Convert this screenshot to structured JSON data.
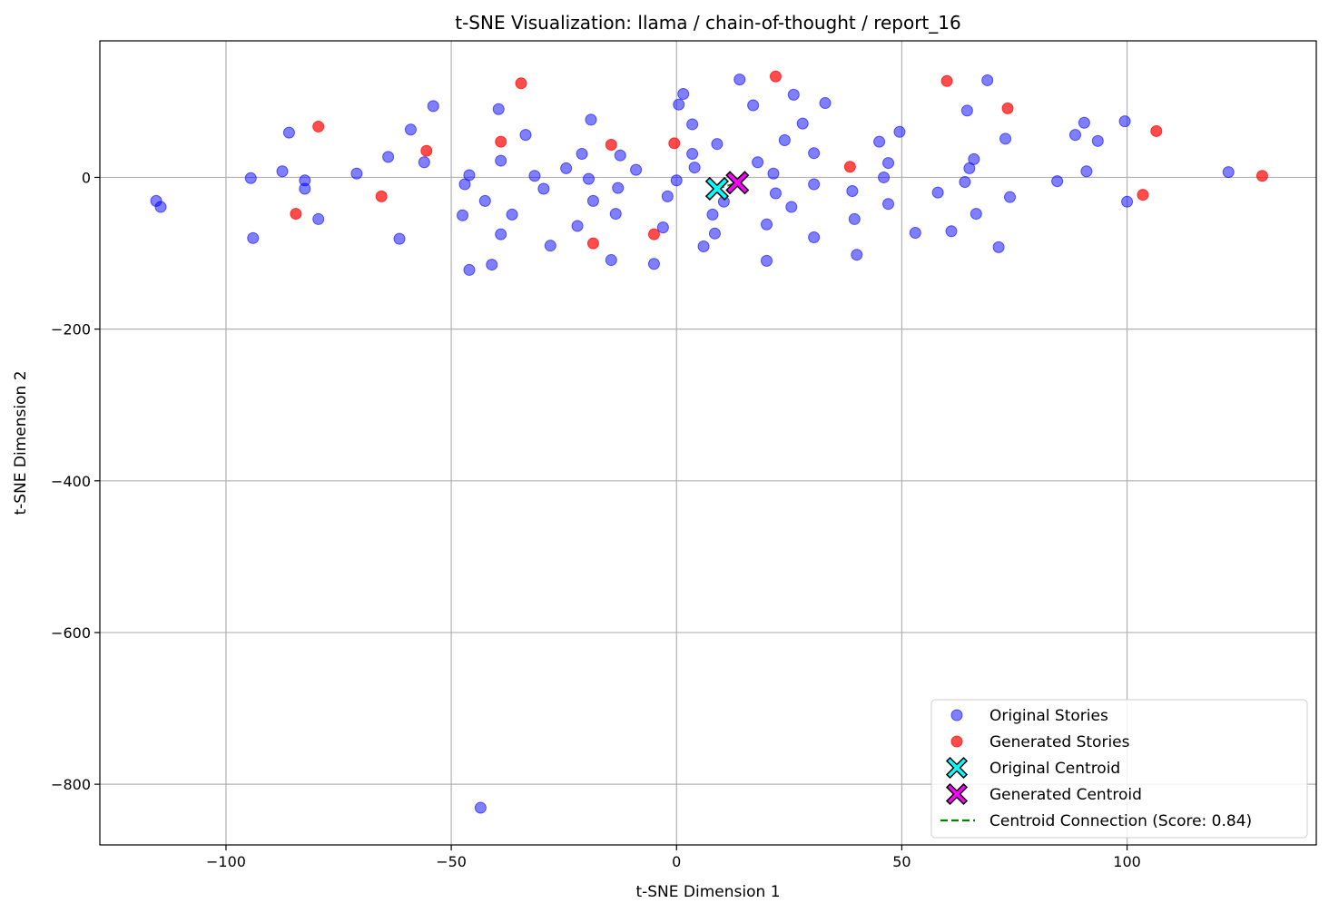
{
  "chart_data": {
    "type": "scatter",
    "title": "t-SNE Visualization: llama / chain-of-thought / report_16",
    "xlabel": "t-SNE Dimension 1",
    "ylabel": "t-SNE Dimension 2",
    "xlim": [
      -128,
      142
    ],
    "ylim": [
      -880,
      180
    ],
    "xticks": [
      -100,
      -50,
      0,
      50,
      100
    ],
    "yticks": [
      -800,
      -600,
      -400,
      -200,
      0
    ],
    "xtick_labels": [
      "−100",
      "−50",
      "0",
      "50",
      "100"
    ],
    "ytick_labels": [
      "−800",
      "−600",
      "−400",
      "−200",
      "0"
    ],
    "grid": true,
    "legend_position": "bottom-right",
    "legend_entries": {
      "original": "Original Stories",
      "generated": "Generated Stories",
      "original_centroid": "Original Centroid",
      "generated_centroid": "Generated Centroid",
      "connection": "Centroid Connection (Score: 0.84)"
    },
    "series": [
      {
        "name": "Original Stories",
        "color": "#0000ff",
        "points": [
          [
            -115.5,
            -31
          ],
          [
            -114.5,
            -39
          ],
          [
            -94.5,
            -1
          ],
          [
            -94,
            -80
          ],
          [
            -87.5,
            8
          ],
          [
            -86,
            59
          ],
          [
            -82.5,
            -4
          ],
          [
            -82.5,
            -15
          ],
          [
            -79.5,
            -55
          ],
          [
            -71,
            5
          ],
          [
            -64,
            27
          ],
          [
            -61.5,
            -81
          ],
          [
            -59,
            63
          ],
          [
            -56,
            20
          ],
          [
            -54,
            94
          ],
          [
            -47.5,
            -50
          ],
          [
            -47,
            -9
          ],
          [
            -46,
            3
          ],
          [
            -46,
            -122
          ],
          [
            -42.5,
            -31
          ],
          [
            -41,
            -115
          ],
          [
            -39.5,
            90
          ],
          [
            -39,
            22
          ],
          [
            -39,
            -75
          ],
          [
            -36.5,
            -49
          ],
          [
            -33.5,
            56
          ],
          [
            -31.5,
            2
          ],
          [
            -29.5,
            -15
          ],
          [
            -28,
            -90
          ],
          [
            -24.5,
            12
          ],
          [
            -22,
            -64
          ],
          [
            -21,
            31
          ],
          [
            -19.5,
            -2
          ],
          [
            -19,
            76
          ],
          [
            -18.5,
            -31
          ],
          [
            -14.5,
            -109
          ],
          [
            -13.5,
            -48
          ],
          [
            -13,
            -14
          ],
          [
            -12.5,
            29
          ],
          [
            -9,
            10
          ],
          [
            -5,
            -114
          ],
          [
            -3,
            -66
          ],
          [
            -2,
            -25
          ],
          [
            0,
            -4
          ],
          [
            0.5,
            96
          ],
          [
            1.5,
            110
          ],
          [
            3.5,
            70
          ],
          [
            3.5,
            31
          ],
          [
            4,
            13
          ],
          [
            6,
            -91
          ],
          [
            8,
            -49
          ],
          [
            8.5,
            -74
          ],
          [
            9,
            44
          ],
          [
            10.5,
            -32
          ],
          [
            14,
            129
          ],
          [
            17,
            95
          ],
          [
            18,
            20
          ],
          [
            20,
            -62
          ],
          [
            20,
            -110
          ],
          [
            21.5,
            5
          ],
          [
            22,
            -21
          ],
          [
            24,
            49
          ],
          [
            25.5,
            -39
          ],
          [
            26,
            109
          ],
          [
            28,
            71
          ],
          [
            30.5,
            -9
          ],
          [
            30.5,
            32
          ],
          [
            30.5,
            -79
          ],
          [
            33,
            98
          ],
          [
            39,
            -18
          ],
          [
            39.5,
            -55
          ],
          [
            40,
            -102
          ],
          [
            45,
            47
          ],
          [
            46,
            0
          ],
          [
            47,
            -35
          ],
          [
            47,
            19
          ],
          [
            49.5,
            60
          ],
          [
            53,
            -73
          ],
          [
            58,
            -20
          ],
          [
            61,
            -71
          ],
          [
            64,
            -6
          ],
          [
            64.5,
            88
          ],
          [
            65,
            12
          ],
          [
            66,
            24
          ],
          [
            66.5,
            -48
          ],
          [
            69,
            128
          ],
          [
            71.5,
            -92
          ],
          [
            73,
            51
          ],
          [
            74,
            -26
          ],
          [
            84.5,
            -5
          ],
          [
            88.5,
            56
          ],
          [
            90.5,
            72
          ],
          [
            91,
            8
          ],
          [
            93.5,
            48
          ],
          [
            99.5,
            74
          ],
          [
            100,
            -32
          ],
          [
            122.5,
            7
          ],
          [
            -43.5,
            -831
          ]
        ]
      },
      {
        "name": "Generated Stories",
        "color": "#ff0000",
        "points": [
          [
            -84.5,
            -48
          ],
          [
            -79.5,
            67
          ],
          [
            -65.5,
            -25
          ],
          [
            -55.5,
            35
          ],
          [
            -39,
            47
          ],
          [
            -34.5,
            124
          ],
          [
            -18.5,
            -87
          ],
          [
            -14.5,
            43
          ],
          [
            -5,
            -75
          ],
          [
            -0.5,
            45
          ],
          [
            22,
            133
          ],
          [
            38.5,
            14
          ],
          [
            60,
            127
          ],
          [
            73.5,
            91
          ],
          [
            103.5,
            -23
          ],
          [
            106.5,
            61
          ],
          [
            130,
            2
          ]
        ]
      },
      {
        "name": "Original Centroid",
        "color": "#00ffff",
        "points": [
          [
            9,
            -15
          ]
        ]
      },
      {
        "name": "Generated Centroid",
        "color": "#ff00ff",
        "points": [
          [
            13.5,
            -7
          ]
        ]
      }
    ],
    "connection": {
      "name": "Centroid Connection (Score: 0.84)",
      "color": "#008000",
      "from": [
        9,
        -15
      ],
      "to": [
        13.5,
        -7
      ]
    }
  }
}
